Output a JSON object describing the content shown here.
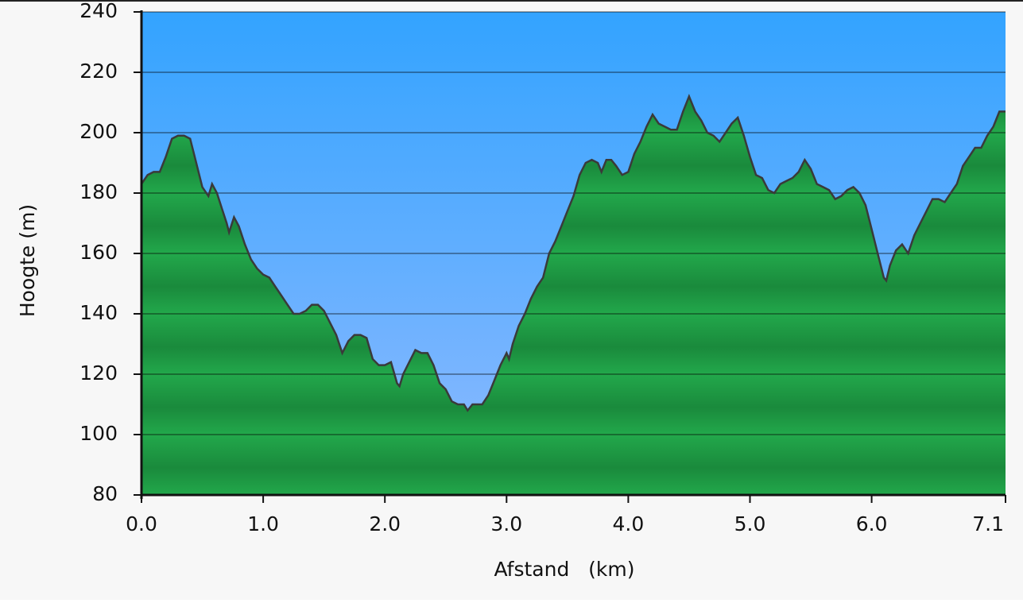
{
  "chart_data": {
    "type": "area",
    "xlabel": "Afstand   (km)",
    "ylabel": "Hoogte (m)",
    "color": "#1f9e45",
    "line_color": "#3a3a3a",
    "xlim": [
      0,
      7.1
    ],
    "ylim": [
      80,
      240
    ],
    "xticks": [
      {
        "value": 0,
        "label": "0.0"
      },
      {
        "value": 1,
        "label": "1.0"
      },
      {
        "value": 2,
        "label": "2.0"
      },
      {
        "value": 3,
        "label": "3.0"
      },
      {
        "value": 4,
        "label": "4.0"
      },
      {
        "value": 5,
        "label": "5.0"
      },
      {
        "value": 6,
        "label": "6.0"
      },
      7.1
    ],
    "yticks": [
      80,
      100,
      120,
      140,
      160,
      180,
      200,
      220,
      240
    ],
    "grid": true,
    "x": [
      0,
      0.05,
      0.1,
      0.15,
      0.2,
      0.25,
      0.3,
      0.35,
      0.4,
      0.45,
      0.5,
      0.55,
      0.58,
      0.62,
      0.66,
      0.7,
      0.72,
      0.76,
      0.8,
      0.85,
      0.9,
      0.95,
      1.0,
      1.05,
      1.1,
      1.15,
      1.2,
      1.25,
      1.3,
      1.35,
      1.4,
      1.45,
      1.5,
      1.55,
      1.6,
      1.65,
      1.7,
      1.75,
      1.8,
      1.85,
      1.9,
      1.95,
      2.0,
      2.05,
      2.1,
      2.12,
      2.15,
      2.2,
      2.25,
      2.3,
      2.35,
      2.4,
      2.45,
      2.5,
      2.55,
      2.6,
      2.65,
      2.68,
      2.72,
      2.76,
      2.8,
      2.85,
      2.9,
      2.95,
      3.0,
      3.02,
      3.05,
      3.1,
      3.15,
      3.2,
      3.25,
      3.3,
      3.35,
      3.4,
      3.45,
      3.5,
      3.55,
      3.6,
      3.65,
      3.7,
      3.75,
      3.78,
      3.82,
      3.86,
      3.9,
      3.95,
      4.0,
      4.05,
      4.1,
      4.15,
      4.2,
      4.25,
      4.3,
      4.35,
      4.4,
      4.45,
      4.5,
      4.55,
      4.6,
      4.65,
      4.7,
      4.75,
      4.8,
      4.85,
      4.9,
      4.95,
      5.0,
      5.05,
      5.1,
      5.15,
      5.2,
      5.25,
      5.3,
      5.35,
      5.4,
      5.45,
      5.5,
      5.55,
      5.6,
      5.65,
      5.7,
      5.75,
      5.8,
      5.85,
      5.9,
      5.95,
      6.0,
      6.05,
      6.1,
      6.12,
      6.15,
      6.2,
      6.25,
      6.3,
      6.35,
      6.4,
      6.45,
      6.5,
      6.55,
      6.6,
      6.65,
      6.7,
      6.75,
      6.8,
      6.85,
      6.9,
      6.95,
      7.0,
      7.05,
      7.1
    ],
    "values": [
      183,
      186,
      187,
      187,
      192,
      198,
      199,
      199,
      198,
      190,
      182,
      179,
      183,
      180,
      175,
      170,
      167,
      172,
      169,
      163,
      158,
      155,
      153,
      152,
      149,
      146,
      143,
      140,
      140,
      141,
      143,
      143,
      141,
      137,
      133,
      127,
      131,
      133,
      133,
      132,
      125,
      123,
      123,
      124,
      117,
      116,
      120,
      124,
      128,
      127,
      127,
      123,
      117,
      115,
      111,
      110,
      110,
      108,
      110,
      110,
      110,
      113,
      118,
      123,
      127,
      125,
      130,
      136,
      140,
      145,
      149,
      152,
      160,
      164,
      169,
      174,
      179,
      186,
      190,
      191,
      190,
      187,
      191,
      191,
      189,
      186,
      187,
      193,
      197,
      202,
      206,
      203,
      202,
      201,
      201,
      207,
      212,
      207,
      204,
      200,
      199,
      197,
      200,
      203,
      205,
      199,
      192,
      186,
      185,
      181,
      180,
      183,
      184,
      185,
      187,
      191,
      188,
      183,
      182,
      181,
      178,
      179,
      181,
      182,
      180,
      176,
      168,
      160,
      152,
      151,
      156,
      161,
      163,
      160,
      166,
      170,
      174,
      178,
      178,
      177,
      180,
      183,
      189,
      192,
      195,
      195,
      199,
      202,
      207,
      207
    ]
  }
}
